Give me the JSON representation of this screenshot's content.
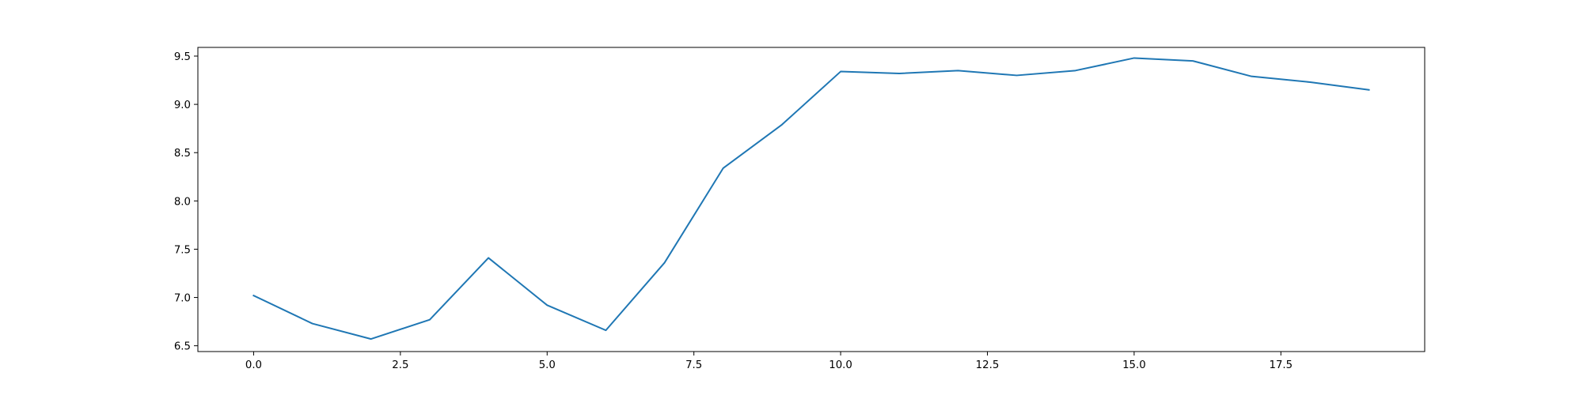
{
  "chart_data": {
    "type": "line",
    "title": "",
    "xlabel": "",
    "ylabel": "",
    "xlim": [
      -0.95,
      19.95
    ],
    "ylim": [
      6.44,
      9.59
    ],
    "x_ticks": [
      "0.0",
      "2.5",
      "5.0",
      "7.5",
      "10.0",
      "12.5",
      "15.0",
      "17.5"
    ],
    "x_tick_values": [
      0,
      2.5,
      5,
      7.5,
      10,
      12.5,
      15,
      17.5
    ],
    "y_ticks": [
      "6.5",
      "7.0",
      "7.5",
      "8.0",
      "8.5",
      "9.0",
      "9.5"
    ],
    "y_tick_values": [
      6.5,
      7.0,
      7.5,
      8.0,
      8.5,
      9.0,
      9.5
    ],
    "grid": false,
    "legend": "none",
    "series": [
      {
        "color": "#1f77b4",
        "x": [
          0,
          1,
          2,
          3,
          4,
          5,
          6,
          7,
          8,
          9,
          10,
          11,
          12,
          13,
          14,
          15,
          16,
          17,
          18,
          19
        ],
        "y": [
          7.02,
          6.73,
          6.57,
          6.77,
          7.41,
          6.92,
          6.66,
          7.36,
          8.34,
          8.79,
          9.34,
          9.32,
          9.35,
          9.3,
          9.35,
          9.48,
          9.45,
          9.29,
          9.23,
          9.15
        ]
      }
    ]
  }
}
